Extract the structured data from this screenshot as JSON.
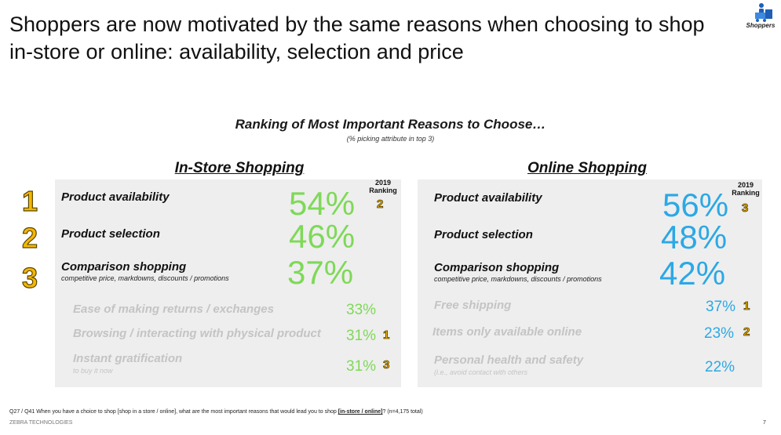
{
  "header": {
    "title": "Shoppers are now motivated by the same reasons when choosing to shop in-store or online: availability, selection and price",
    "logo_label": "Shoppers"
  },
  "chart": {
    "title": "Ranking of Most Important Reasons to Choose…",
    "note": "(% picking attribute in top 3)",
    "rank_header_line1": "2019",
    "rank_header_line2": "Ranking",
    "ranks": [
      "1",
      "2",
      "3"
    ]
  },
  "instore": {
    "title": "In-Store Shopping",
    "top": [
      {
        "label": "Product availability",
        "sub": "",
        "pct": "54%",
        "rank2019": "2"
      },
      {
        "label": "Product selection",
        "sub": "",
        "pct": "46%",
        "rank2019": ""
      },
      {
        "label": "Comparison shopping",
        "sub": "competitive price, markdowns, discounts / promotions",
        "pct": "37%",
        "rank2019": ""
      }
    ],
    "minor": [
      {
        "label": "Ease of making returns / exchanges",
        "sub": "",
        "pct": "33%",
        "rank2019": ""
      },
      {
        "label": "Browsing / interacting with physical product",
        "sub": "",
        "pct": "31%",
        "rank2019": "1"
      },
      {
        "label": "Instant gratification",
        "sub": "to buy it now",
        "pct": "31%",
        "rank2019": "3"
      }
    ]
  },
  "online": {
    "title": "Online Shopping",
    "top": [
      {
        "label": "Product availability",
        "sub": "",
        "pct": "56%",
        "rank2019": "3"
      },
      {
        "label": "Product selection",
        "sub": "",
        "pct": "48%",
        "rank2019": ""
      },
      {
        "label": "Comparison shopping",
        "sub": "competitive price, markdowns, discounts / promotions",
        "pct": "42%",
        "rank2019": ""
      }
    ],
    "minor": [
      {
        "label": "Free shipping",
        "sub": "",
        "pct": "37%",
        "rank2019": "1"
      },
      {
        "label": "Items only available online",
        "sub": "",
        "pct": "23%",
        "rank2019": "2"
      },
      {
        "label": "Personal health and safety",
        "sub": "(i.e., avoid contact with others",
        "pct": "22%",
        "rank2019": ""
      }
    ]
  },
  "footer": {
    "note_prefix": "Q27 / Q41  When you have a choice to shop [shop in a store / online], what are the most important reasons that would lead you to shop ",
    "note_bold": "[in-store / online]",
    "note_suffix": "? (n=4,175 total)",
    "company": "ZEBRA TECHNOLOGIES",
    "page": "7"
  },
  "colors": {
    "instore_pct": "#7ed957",
    "online_pct": "#2ba8e6",
    "rank_gold": "#f5b800",
    "panel_bg": "#eeeeee"
  }
}
